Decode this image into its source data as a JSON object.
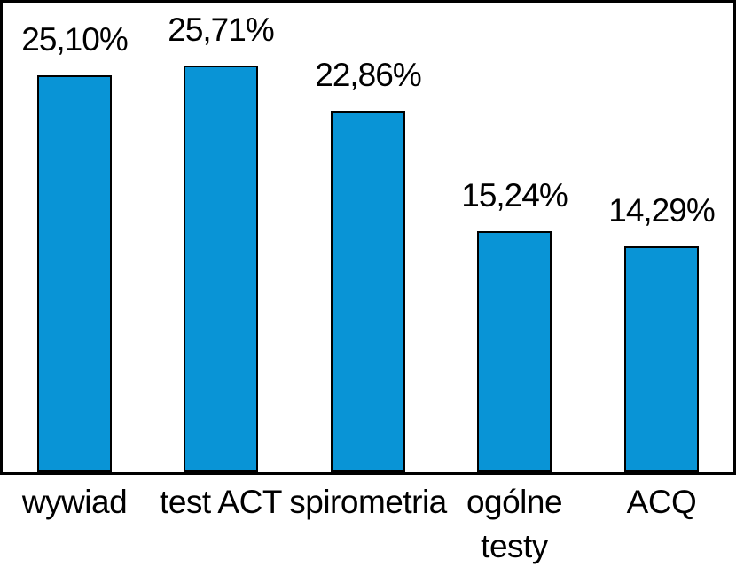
{
  "chart_data": {
    "type": "bar",
    "title": "",
    "xlabel": "",
    "ylabel": "",
    "categories": [
      "wywiad",
      "test ACT",
      "spirometria",
      "ogólne\ntesty",
      "ACQ"
    ],
    "values": [
      25.1,
      25.71,
      22.86,
      15.24,
      14.29
    ],
    "value_labels": [
      "25,10%",
      "25,71%",
      "22,86%",
      "15,24%",
      "14,29%"
    ],
    "value_format": "percent-comma-decimal",
    "ylim": [
      0,
      29.9
    ],
    "grid": false,
    "legend": "none",
    "axes_visible": false,
    "plot_frame": true
  },
  "colors": {
    "bar_fill": "#0994d6",
    "bar_border": "#000000",
    "frame_border": "#000000",
    "background": "#ffffff",
    "text": "#000000"
  }
}
